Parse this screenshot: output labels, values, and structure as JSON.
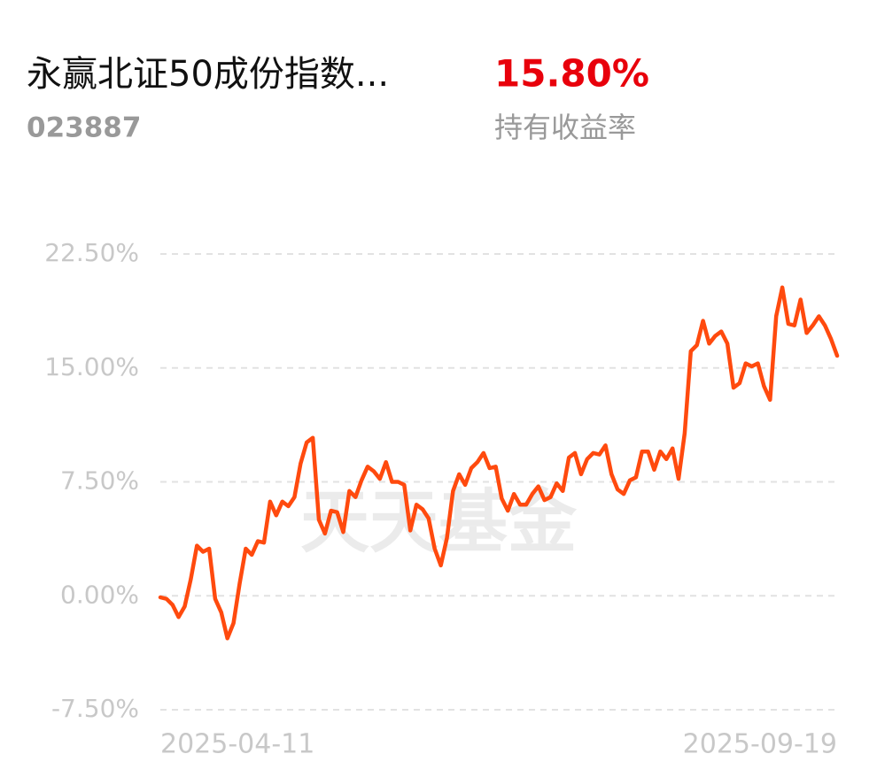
{
  "header": {
    "title": "永赢北证50成份指数...",
    "code": "023887",
    "return_value": "15.80%",
    "return_label": "持有收益率"
  },
  "watermark": "天天基金",
  "chart_data": {
    "type": "line",
    "categories": [
      "2025-04-11",
      null,
      null,
      null,
      null,
      null,
      null,
      null,
      null,
      null,
      null,
      null,
      null,
      null,
      null,
      null,
      null,
      null,
      null,
      null,
      null,
      null,
      null,
      null,
      null,
      null,
      null,
      null,
      null,
      null,
      null,
      null,
      null,
      null,
      null,
      null,
      null,
      null,
      null,
      null,
      null,
      null,
      null,
      null,
      null,
      null,
      null,
      null,
      null,
      null,
      null,
      null,
      null,
      null,
      null,
      null,
      null,
      null,
      null,
      null,
      null,
      null,
      null,
      null,
      null,
      null,
      null,
      null,
      null,
      null,
      null,
      null,
      null,
      null,
      null,
      null,
      null,
      null,
      null,
      null,
      null,
      null,
      null,
      null,
      null,
      null,
      null,
      null,
      null,
      null,
      null,
      null,
      null,
      null,
      null,
      null,
      null,
      null,
      null,
      null,
      null,
      null,
      null,
      null,
      null,
      null,
      null,
      null,
      null,
      null,
      null,
      "2025-09-19"
    ],
    "values": [
      -0.1,
      -0.2,
      -0.6,
      -1.4,
      -0.7,
      1.1,
      3.3,
      2.9,
      3.1,
      -0.2,
      -1.1,
      -2.8,
      -1.8,
      0.8,
      3.1,
      2.7,
      3.6,
      3.5,
      6.2,
      5.3,
      6.2,
      5.9,
      6.5,
      8.7,
      10.1,
      10.4,
      5.0,
      4.1,
      5.6,
      5.5,
      4.2,
      6.9,
      6.5,
      7.6,
      8.5,
      8.2,
      7.7,
      8.8,
      7.5,
      7.5,
      7.3,
      4.3,
      6.0,
      5.7,
      5.1,
      3.1,
      2.0,
      3.8,
      6.9,
      8.0,
      7.3,
      8.4,
      8.8,
      9.4,
      8.4,
      8.5,
      6.4,
      5.6,
      6.7,
      6.0,
      6.0,
      6.7,
      7.2,
      6.3,
      6.5,
      7.4,
      6.9,
      9.1,
      9.4,
      8.0,
      9.0,
      9.4,
      9.3,
      9.9,
      8.0,
      7.0,
      6.7,
      7.6,
      7.8,
      9.5,
      9.5,
      8.3,
      9.5,
      9.0,
      9.7,
      7.7,
      10.7,
      16.1,
      16.5,
      18.1,
      16.6,
      17.1,
      17.4,
      16.6,
      13.7,
      14.0,
      15.3,
      15.1,
      15.3,
      13.8,
      12.9,
      18.4,
      20.3,
      17.9,
      17.8,
      19.5,
      17.3,
      17.8,
      18.4,
      17.8,
      16.9,
      15.8
    ],
    "color": "#ff4a0e",
    "ylim": [
      -7.5,
      22.5
    ],
    "yticks": [
      {
        "value": -7.5,
        "label": "-7.50%"
      },
      {
        "value": 0,
        "label": "0.00%"
      },
      {
        "value": 7.5,
        "label": "7.50%"
      },
      {
        "value": 15,
        "label": "15.00%"
      },
      {
        "value": 22.5,
        "label": "22.50%"
      }
    ],
    "grid": true
  }
}
